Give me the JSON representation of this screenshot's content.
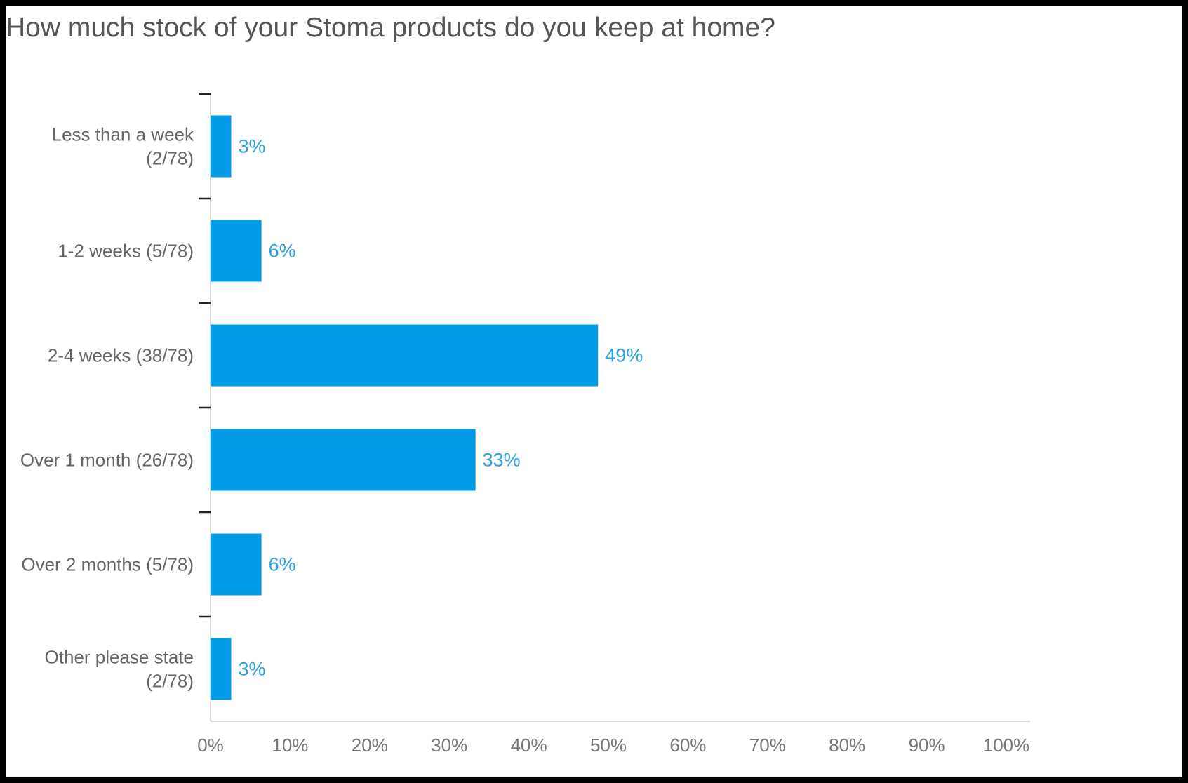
{
  "chart_data": {
    "type": "bar",
    "orientation": "horizontal",
    "title": "How much stock of your Stoma products do you keep at home?",
    "categories": [
      [
        "Less than a week",
        "(2/78)"
      ],
      [
        "1-2 weeks (5/78)"
      ],
      [
        "2-4 weeks (38/78)"
      ],
      [
        "Over 1 month (26/78)"
      ],
      [
        "Over 2 months (5/78)"
      ],
      [
        "Other please state",
        "(2/78)"
      ]
    ],
    "values": [
      2.6,
      6.4,
      48.7,
      33.3,
      6.4,
      2.6
    ],
    "value_labels": [
      "3%",
      "6%",
      "49%",
      "33%",
      "6%",
      "3%"
    ],
    "xlim": [
      0,
      100
    ],
    "x_ticks": [
      "0%",
      "10%",
      "20%",
      "30%",
      "40%",
      "50%",
      "60%",
      "70%",
      "80%",
      "90%",
      "100%"
    ],
    "grid": false,
    "colors": {
      "bar": "#039be5",
      "value_label": "#29a3e0",
      "axis": "#cccccc"
    }
  }
}
